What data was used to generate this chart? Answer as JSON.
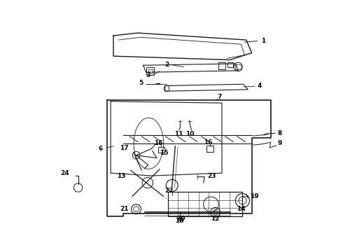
{
  "bg_color": "#ffffff",
  "line_color": "#1a1a1a",
  "figsize": [
    4.9,
    3.6
  ],
  "dpi": 100,
  "label_fs": 6.5
}
